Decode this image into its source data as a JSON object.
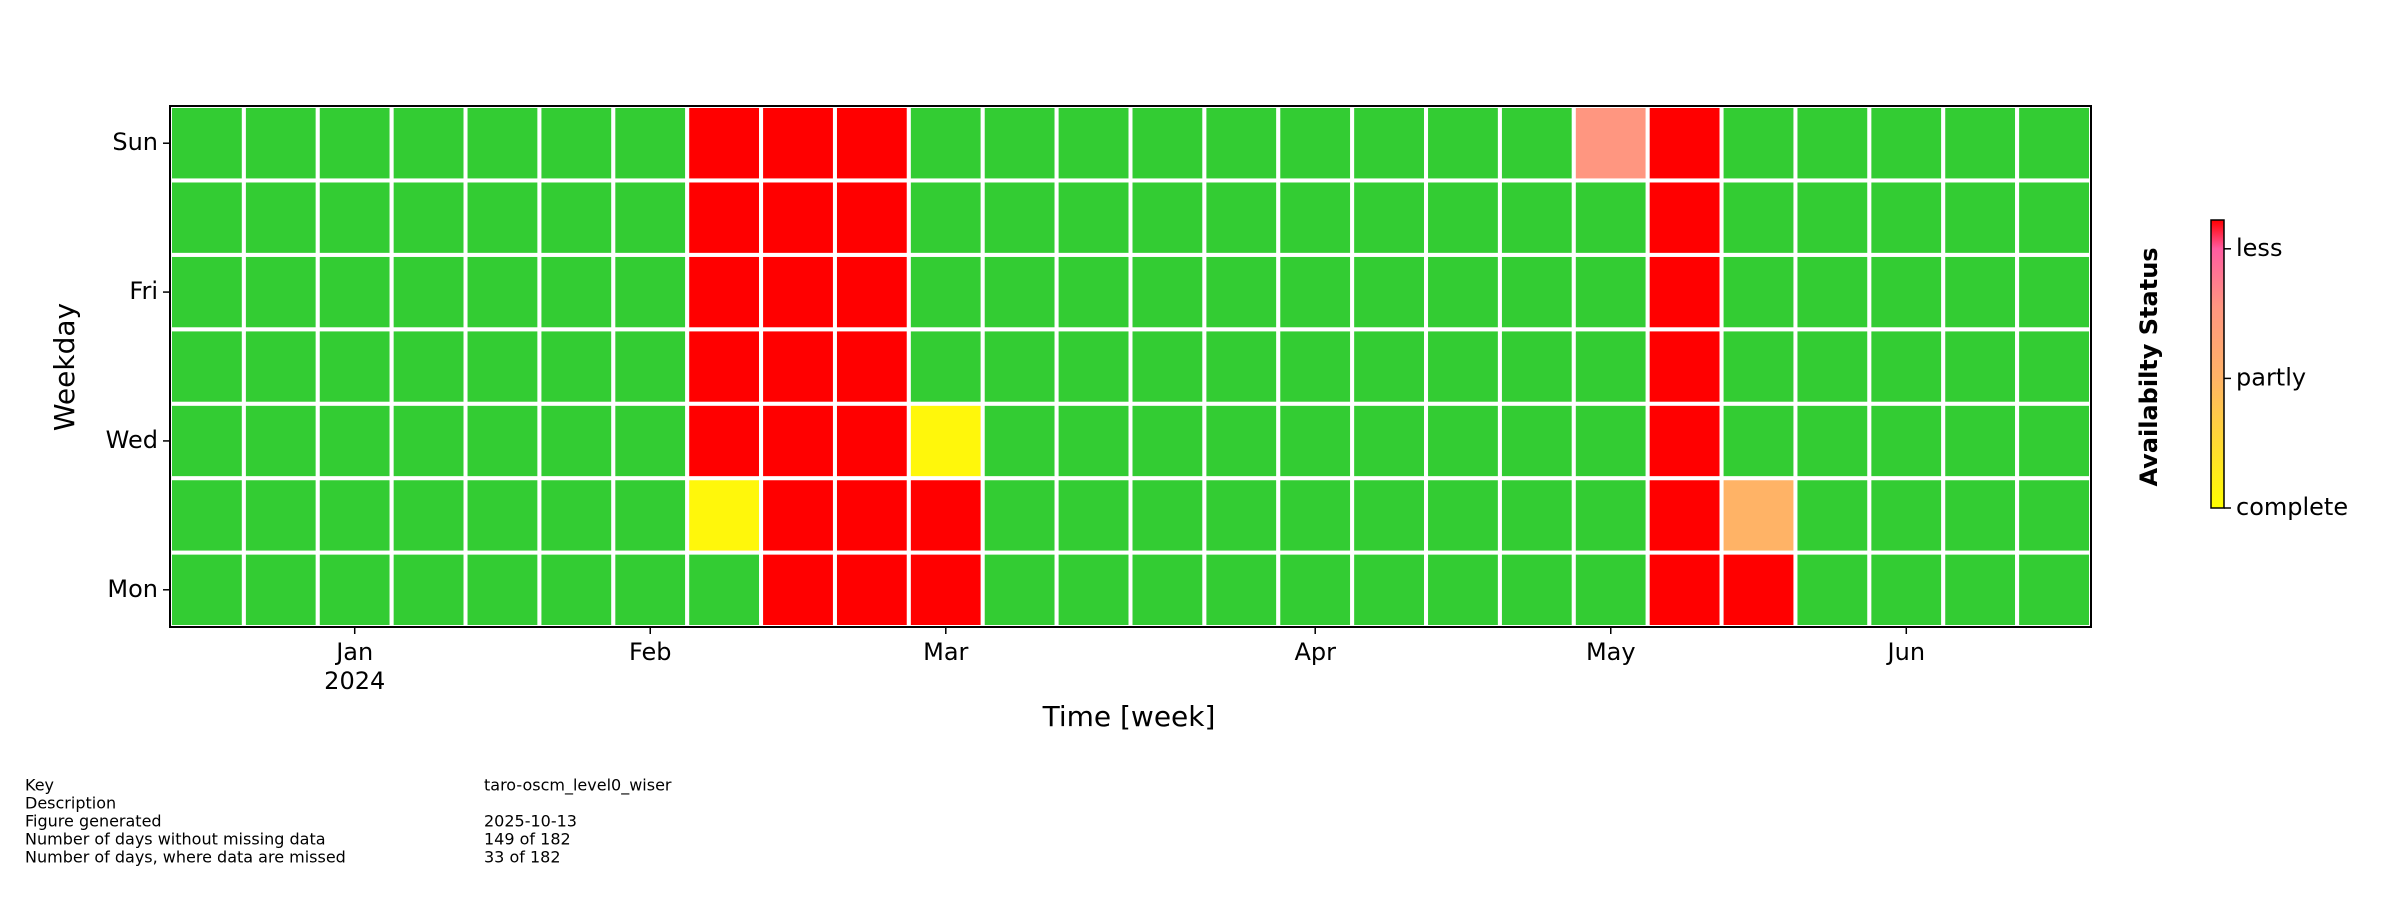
{
  "chart_data": {
    "type": "heatmap",
    "xlabel": "Time [week]",
    "ylabel": "Weekday",
    "xlim": [
      -0.5,
      25.5
    ],
    "xticks": [
      {
        "value": 2,
        "label": "Jan"
      },
      {
        "value": 6,
        "label": "Feb"
      },
      {
        "value": 10,
        "label": "Mar"
      },
      {
        "value": 15,
        "label": "Apr"
      },
      {
        "value": 19,
        "label": "May"
      },
      {
        "value": 23,
        "label": "Jun"
      }
    ],
    "x_offset_text": "2024",
    "ylim": [
      -0.5,
      6.5
    ],
    "y_categories": [
      "Mon",
      null,
      "Wed",
      null,
      "Fri",
      null,
      "Sun"
    ],
    "z": [
      [
        0,
        0,
        0,
        0,
        0,
        0,
        0,
        0,
        1,
        1,
        1,
        0,
        0,
        0,
        0,
        0,
        0,
        0,
        0,
        0,
        1,
        1,
        0,
        0,
        0,
        0
      ],
      [
        0,
        0,
        0,
        0,
        0,
        0,
        0,
        0.05,
        1,
        1,
        1,
        0,
        0,
        0,
        0,
        0,
        0,
        0,
        0,
        0,
        1,
        0.45,
        0,
        0,
        0,
        0
      ],
      [
        0,
        0,
        0,
        0,
        0,
        0,
        0,
        1,
        1,
        1,
        0.05,
        0,
        0,
        0,
        0,
        0,
        0,
        0,
        0,
        0,
        1,
        0,
        0,
        0,
        0,
        0
      ],
      [
        0,
        0,
        0,
        0,
        0,
        0,
        0,
        1,
        1,
        1,
        0,
        0,
        0,
        0,
        0,
        0,
        0,
        0,
        0,
        0,
        1,
        0,
        0,
        0,
        0,
        0
      ],
      [
        0,
        0,
        0,
        0,
        0,
        0,
        0,
        1,
        1,
        1,
        0,
        0,
        0,
        0,
        0,
        0,
        0,
        0,
        0,
        0,
        1,
        0,
        0,
        0,
        0,
        0
      ],
      [
        0,
        0,
        0,
        0,
        0,
        0,
        0,
        1,
        1,
        1,
        0,
        0,
        0,
        0,
        0,
        0,
        0,
        0,
        0,
        0,
        1,
        0,
        0,
        0,
        0,
        0
      ],
      [
        0,
        0,
        0,
        0,
        0,
        0,
        0,
        1,
        1,
        1,
        0,
        0,
        0,
        0,
        0,
        0,
        0,
        0,
        0,
        0.7,
        1,
        0,
        0,
        0,
        0,
        0
      ]
    ],
    "zero_color": "#33cc33",
    "colormap": [
      {
        "stop": 0,
        "color": "#ffff00"
      },
      {
        "stop": 0.45,
        "color": "#ffb366"
      },
      {
        "stop": 0.7,
        "color": "#ff9680"
      },
      {
        "stop": 0.9,
        "color": "#ff5ca0"
      },
      {
        "stop": 1,
        "color": "#ff0000"
      }
    ],
    "colorbar": {
      "label": "Availabilty Status",
      "lim": [
        0,
        1
      ],
      "ticks": [
        {
          "value": 0,
          "label": "complete"
        },
        {
          "value": 0.45,
          "label": "partly"
        },
        {
          "value": 0.9,
          "label": "less"
        }
      ]
    }
  },
  "info_table": [
    {
      "label": "Key",
      "value": "taro-oscm_level0_wiser"
    },
    {
      "label": "Description"
    },
    {
      "label": "Figure generated",
      "value": "2025-10-13"
    },
    {
      "label": "Number of days without missing data",
      "value": "149 of 182"
    },
    {
      "label": "Number of days, where data are missed",
      "value": "33 of 182"
    }
  ]
}
